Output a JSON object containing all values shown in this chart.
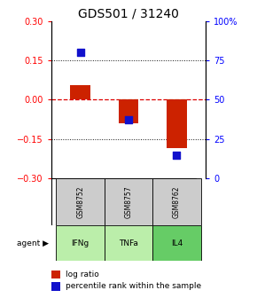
{
  "title": "GDS501 / 31240",
  "samples": [
    "GSM8752",
    "GSM8757",
    "GSM8762"
  ],
  "agents": [
    "IFNg",
    "TNFa",
    "IL4"
  ],
  "log_ratios": [
    0.055,
    -0.09,
    -0.185
  ],
  "percentile_ranks": [
    80,
    37,
    15
  ],
  "ylim_left": [
    -0.3,
    0.3
  ],
  "ylim_right": [
    0,
    100
  ],
  "yticks_left": [
    -0.3,
    -0.15,
    0,
    0.15,
    0.3
  ],
  "yticks_right": [
    0,
    25,
    50,
    75,
    100
  ],
  "bar_color": "#cc2200",
  "dot_color": "#1111cc",
  "agent_colors": {
    "IFNg": "#bbeeaa",
    "TNFa": "#bbeeaa",
    "IL4": "#66cc66"
  },
  "sample_bg": "#cccccc",
  "hline_color": "#dd0000",
  "grid_color": "#111111",
  "title_fontsize": 10,
  "tick_fontsize": 7,
  "legend_fontsize": 6.5
}
